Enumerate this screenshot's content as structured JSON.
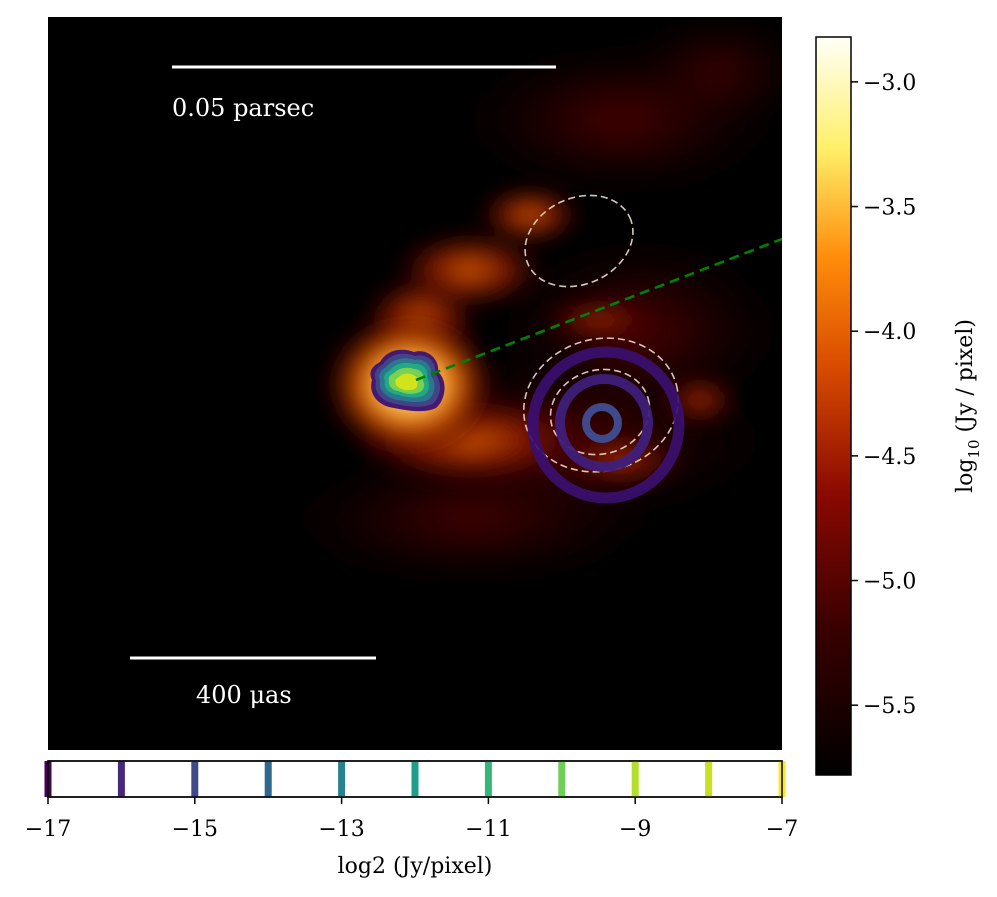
{
  "chart_data": [
    {
      "type": "heatmap",
      "description_role": "main image",
      "grid": false,
      "scale_bars": [
        {
          "label": "0.05 parsec",
          "length_parsec": 0.05
        },
        {
          "label": "400 μas",
          "length_uas": 400
        }
      ],
      "overlay_line": {
        "style": "dashed",
        "color": "#008000"
      },
      "ellipses": {
        "style": "dashed",
        "color": "#d9c4bd",
        "count": 3
      },
      "core_colormap": "viridis",
      "ring_contours": {
        "count": 3,
        "colors": [
          "#3b0f70",
          "#3f1f7a",
          "#3e4a8c"
        ]
      }
    },
    {
      "type": "colorbar",
      "orientation": "vertical",
      "colormap": "afmhot",
      "ylabel_prefix": "log",
      "ylabel_sub": "10",
      "ylabel_suffix": " (Jy / pixel)",
      "ticks": [
        -3.0,
        -3.5,
        -4.0,
        -4.5,
        -5.0,
        -5.5
      ],
      "tick_labels": [
        "−3.0",
        "−3.5",
        "−4.0",
        "−4.5",
        "−5.0",
        "−5.5"
      ],
      "ylim": [
        -5.78,
        -2.82
      ]
    },
    {
      "type": "colorbar",
      "orientation": "horizontal",
      "colormap": "viridis",
      "xlabel": "log2 (Jy/pixel)",
      "xlim": [
        -17,
        -7
      ],
      "ticks": [
        -17,
        -15,
        -13,
        -11,
        -9,
        -7
      ],
      "tick_labels": [
        "−17",
        "−15",
        "−13",
        "−11",
        "−9",
        "−7"
      ],
      "levels": [
        -17,
        -16,
        -15,
        -14,
        -13,
        -12,
        -11,
        -10,
        -9,
        -8,
        -7
      ],
      "level_colors": [
        "#440154",
        "#482878",
        "#3e4a89",
        "#31688e",
        "#26828e",
        "#1f9e89",
        "#35b779",
        "#6ece58",
        "#b5de2b",
        "#c8e020",
        "#fde725"
      ]
    }
  ]
}
